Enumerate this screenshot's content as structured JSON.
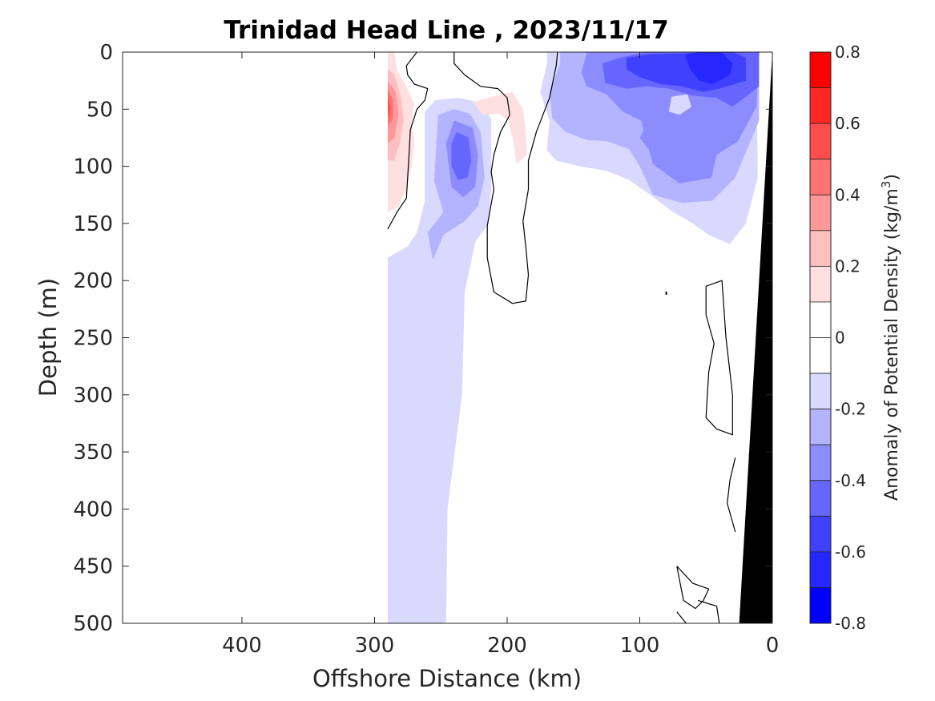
{
  "chart_data": {
    "type": "heatmap",
    "title": "Trinidad Head Line , 2023/11/17",
    "xlabel": "Offshore Distance (km)",
    "ylabel": "Depth (m)",
    "xlim": [
      490,
      0
    ],
    "ylim": [
      500,
      0
    ],
    "x_reversed": true,
    "y_reversed": true,
    "xticks": [
      400,
      300,
      200,
      100,
      0
    ],
    "yticks": [
      0,
      50,
      100,
      150,
      200,
      250,
      300,
      350,
      400,
      450,
      500
    ],
    "colorbar": {
      "label": "Anomaly of Potential Density",
      "unit_prefix": "(kg/m",
      "unit_power": "3",
      "unit_suffix": ")",
      "range": [
        -0.8,
        0.8
      ],
      "ticks": [
        0.8,
        0.6,
        0.4,
        0.2,
        0,
        -0.2,
        -0.4,
        -0.6,
        -0.8
      ],
      "levels": [
        {
          "min": 0.7,
          "max": 0.8,
          "color": "#ff0000"
        },
        {
          "min": 0.6,
          "max": 0.7,
          "color": "#ff2626"
        },
        {
          "min": 0.5,
          "max": 0.6,
          "color": "#ff4c4c"
        },
        {
          "min": 0.4,
          "max": 0.5,
          "color": "#ff7373"
        },
        {
          "min": 0.3,
          "max": 0.4,
          "color": "#ff9999"
        },
        {
          "min": 0.2,
          "max": 0.3,
          "color": "#ffbfbf"
        },
        {
          "min": 0.1,
          "max": 0.2,
          "color": "#ffe0e0"
        },
        {
          "min": 0.0,
          "max": 0.1,
          "color": "#ffffff"
        },
        {
          "min": -0.1,
          "max": 0.0,
          "color": "#ffffff"
        },
        {
          "min": -0.2,
          "max": -0.1,
          "color": "#d9d9ff"
        },
        {
          "min": -0.3,
          "max": -0.2,
          "color": "#b3b3ff"
        },
        {
          "min": -0.4,
          "max": -0.3,
          "color": "#8c8cff"
        },
        {
          "min": -0.5,
          "max": -0.4,
          "color": "#6666ff"
        },
        {
          "min": -0.6,
          "max": -0.5,
          "color": "#4040ff"
        },
        {
          "min": -0.7,
          "max": -0.6,
          "color": "#2626ff"
        },
        {
          "min": -0.8,
          "max": -0.7,
          "color": "#0000ff"
        }
      ]
    },
    "regions": [
      {
        "level": -0.1,
        "color": "#d9d9ff",
        "pts": [
          [
            290,
            500
          ],
          [
            290,
            180
          ],
          [
            275,
            170
          ],
          [
            268,
            158
          ],
          [
            262,
            130
          ],
          [
            262,
            90
          ],
          [
            262,
            52
          ],
          [
            254,
            42
          ],
          [
            236,
            40
          ],
          [
            222,
            44
          ],
          [
            212,
            58
          ],
          [
            212,
            90
          ],
          [
            212,
            120
          ],
          [
            214,
            150
          ],
          [
            224,
            166
          ],
          [
            232,
            210
          ],
          [
            234,
            300
          ],
          [
            245,
            400
          ],
          [
            246,
            500
          ]
        ]
      },
      {
        "level": -0.2,
        "color": "#b3b3ff",
        "pts": [
          [
            256,
            182
          ],
          [
            260,
            158
          ],
          [
            248,
            140
          ],
          [
            255,
            113
          ],
          [
            252,
            55
          ],
          [
            240,
            50
          ],
          [
            228,
            54
          ],
          [
            220,
            70
          ],
          [
            217,
            110
          ],
          [
            222,
            135
          ],
          [
            232,
            148
          ],
          [
            248,
            160
          ]
        ]
      },
      {
        "level": -0.3,
        "color": "#8c8cff",
        "pts": [
          [
            240,
            60
          ],
          [
            226,
            66
          ],
          [
            222,
            90
          ],
          [
            224,
            118
          ],
          [
            233,
            127
          ],
          [
            242,
            118
          ],
          [
            246,
            80
          ]
        ]
      },
      {
        "level": -0.4,
        "color": "#6666ff",
        "pts": [
          [
            238,
            70
          ],
          [
            229,
            75
          ],
          [
            227,
            95
          ],
          [
            230,
            110
          ],
          [
            237,
            112
          ],
          [
            242,
            100
          ],
          [
            242,
            80
          ]
        ]
      },
      {
        "level": -0.1,
        "color": "#d9d9ff",
        "pts": [
          [
            170,
            0
          ],
          [
            9,
            0
          ],
          [
            12,
            15
          ],
          [
            11,
            110
          ],
          [
            20,
            150
          ],
          [
            32,
            168
          ],
          [
            48,
            160
          ],
          [
            60,
            150
          ],
          [
            75,
            140
          ],
          [
            92,
            125
          ],
          [
            108,
            112
          ],
          [
            125,
            104
          ],
          [
            145,
            100
          ],
          [
            163,
            95
          ],
          [
            170,
            86
          ],
          [
            168,
            60
          ],
          [
            175,
            35
          ],
          [
            170,
            10
          ]
        ]
      },
      {
        "level": -0.2,
        "color": "#b3b3ff",
        "pts": [
          [
            160,
            0
          ],
          [
            10,
            0
          ],
          [
            10,
            60
          ],
          [
            28,
            110
          ],
          [
            45,
            130
          ],
          [
            68,
            132
          ],
          [
            90,
            125
          ],
          [
            100,
            100
          ],
          [
            108,
            85
          ],
          [
            125,
            78
          ],
          [
            140,
            77
          ],
          [
            156,
            70
          ],
          [
            166,
            58
          ],
          [
            168,
            35
          ],
          [
            160,
            10
          ]
        ]
      },
      {
        "level": -0.3,
        "color": "#8c8cff",
        "pts": [
          [
            140,
            0
          ],
          [
            10,
            0
          ],
          [
            12,
            48
          ],
          [
            26,
            78
          ],
          [
            42,
            90
          ],
          [
            46,
            110
          ],
          [
            70,
            115
          ],
          [
            90,
            98
          ],
          [
            99,
            60
          ],
          [
            113,
            52
          ],
          [
            125,
            37
          ],
          [
            140,
            30
          ],
          [
            144,
            18
          ]
        ]
      },
      {
        "level": -0.4,
        "color": "#6666ff",
        "pts": [
          [
            128,
            10
          ],
          [
            115,
            5
          ],
          [
            95,
            0
          ],
          [
            10,
            0
          ],
          [
            10,
            30
          ],
          [
            30,
            48
          ],
          [
            42,
            40
          ],
          [
            60,
            38
          ],
          [
            78,
            32
          ],
          [
            95,
            30
          ],
          [
            110,
            32
          ],
          [
            126,
            27
          ]
        ]
      },
      {
        "level": -0.5,
        "color": "#4040ff",
        "pts": [
          [
            110,
            5
          ],
          [
            92,
            2
          ],
          [
            30,
            0
          ],
          [
            20,
            5
          ],
          [
            20,
            25
          ],
          [
            40,
            32
          ],
          [
            52,
            35
          ],
          [
            68,
            30
          ],
          [
            84,
            28
          ],
          [
            100,
            22
          ],
          [
            110,
            15
          ]
        ]
      },
      {
        "level": -0.6,
        "color": "#2626ff",
        "pts": [
          [
            66,
            2
          ],
          [
            55,
            0
          ],
          [
            38,
            0
          ],
          [
            30,
            10
          ],
          [
            32,
            20
          ],
          [
            45,
            28
          ],
          [
            55,
            25
          ],
          [
            62,
            15
          ]
        ]
      },
      {
        "level": -0.3,
        "color": "#8c8cff",
        "pts": [
          [
            92,
            58
          ],
          [
            100,
            75
          ],
          [
            90,
            90
          ],
          [
            75,
            91
          ],
          [
            60,
            92
          ],
          [
            52,
            85
          ],
          [
            62,
            78
          ],
          [
            75,
            74
          ]
        ]
      },
      {
        "level": -0.1,
        "color": "#d9d9ff",
        "pts": [
          [
            64,
            37
          ],
          [
            76,
            39
          ],
          [
            78,
            52
          ],
          [
            70,
            55
          ],
          [
            61,
            48
          ]
        ]
      },
      {
        "level": 0.1,
        "color": "#ffe0e0",
        "pts": [
          [
            290,
            0
          ],
          [
            285,
            0
          ],
          [
            283,
            16
          ],
          [
            276,
            30
          ],
          [
            270,
            45
          ],
          [
            272,
            62
          ],
          [
            270,
            78
          ],
          [
            272,
            100
          ],
          [
            276,
            120
          ],
          [
            282,
            135
          ],
          [
            290,
            140
          ]
        ]
      },
      {
        "level": 0.2,
        "color": "#ffbfbf",
        "pts": [
          [
            290,
            15
          ],
          [
            285,
            20
          ],
          [
            280,
            40
          ],
          [
            278,
            60
          ],
          [
            281,
            80
          ],
          [
            285,
            95
          ],
          [
            290,
            95
          ]
        ]
      },
      {
        "level": 0.3,
        "color": "#ff9999",
        "pts": [
          [
            290,
            25
          ],
          [
            284,
            35
          ],
          [
            282,
            55
          ],
          [
            285,
            75
          ],
          [
            290,
            80
          ]
        ]
      },
      {
        "level": 0.4,
        "color": "#ff7373",
        "pts": [
          [
            290,
            32
          ],
          [
            286,
            42
          ],
          [
            286,
            58
          ],
          [
            290,
            65
          ]
        ]
      },
      {
        "level": 0.5,
        "color": "#ff4c4c",
        "pts": [
          [
            290,
            38
          ],
          [
            288,
            50
          ],
          [
            290,
            58
          ]
        ]
      },
      {
        "level": 0.1,
        "color": "#ffe0e0",
        "pts": [
          [
            226,
            44
          ],
          [
            208,
            38
          ],
          [
            196,
            35
          ],
          [
            188,
            50
          ],
          [
            186,
            70
          ],
          [
            185,
            90
          ],
          [
            193,
            98
          ],
          [
            195,
            80
          ],
          [
            199,
            60
          ],
          [
            206,
            54
          ],
          [
            218,
            55
          ]
        ]
      },
      {
        "level": 0.2,
        "color": "#ffe0e0",
        "pts": [
          [
            290,
            112
          ],
          [
            286,
            118
          ],
          [
            290,
            125
          ]
        ]
      }
    ],
    "contours_zero": [
      [
        [
          290,
          155
        ],
        [
          283,
          140
        ],
        [
          276,
          128
        ],
        [
          275,
          110
        ],
        [
          274,
          90
        ],
        [
          273,
          68
        ],
        [
          268,
          50
        ],
        [
          262,
          42
        ],
        [
          260,
          32
        ],
        [
          270,
          28
        ],
        [
          275,
          20
        ],
        [
          276,
          12
        ],
        [
          268,
          0
        ]
      ],
      [
        [
          240,
          0
        ],
        [
          240,
          10
        ],
        [
          232,
          20
        ],
        [
          220,
          30
        ],
        [
          207,
          32
        ],
        [
          200,
          40
        ],
        [
          198,
          55
        ],
        [
          205,
          70
        ],
        [
          210,
          90
        ],
        [
          212,
          105
        ],
        [
          210,
          120
        ],
        [
          215,
          152
        ],
        [
          215,
          180
        ],
        [
          210,
          210
        ],
        [
          196,
          220
        ],
        [
          186,
          218
        ],
        [
          184,
          195
        ],
        [
          186,
          170
        ],
        [
          188,
          148
        ],
        [
          184,
          120
        ],
        [
          184,
          95
        ],
        [
          178,
          70
        ],
        [
          168,
          40
        ],
        [
          163,
          12
        ],
        [
          162,
          0
        ]
      ],
      [
        [
          50,
          205
        ],
        [
          38,
          200
        ],
        [
          35,
          250
        ],
        [
          30,
          300
        ],
        [
          30,
          335
        ],
        [
          42,
          330
        ],
        [
          50,
          320
        ],
        [
          48,
          280
        ],
        [
          44,
          255
        ],
        [
          50,
          230
        ],
        [
          50,
          205
        ]
      ],
      [
        [
          28,
          355
        ],
        [
          32,
          375
        ],
        [
          34,
          395
        ],
        [
          28,
          420
        ]
      ],
      [
        [
          72,
          450
        ],
        [
          67,
          480
        ],
        [
          58,
          487
        ],
        [
          52,
          480
        ],
        [
          48,
          470
        ],
        [
          60,
          465
        ],
        [
          72,
          450
        ]
      ],
      [
        [
          72,
          490
        ],
        [
          65,
          500
        ]
      ],
      [
        [
          40,
          500
        ],
        [
          42,
          485
        ],
        [
          56,
          480
        ]
      ]
    ],
    "marker": {
      "x": 80,
      "y": 211
    },
    "bathymetry": [
      [
        0,
        0
      ],
      [
        0,
        500
      ],
      [
        25,
        500
      ],
      [
        0,
        0
      ]
    ]
  }
}
